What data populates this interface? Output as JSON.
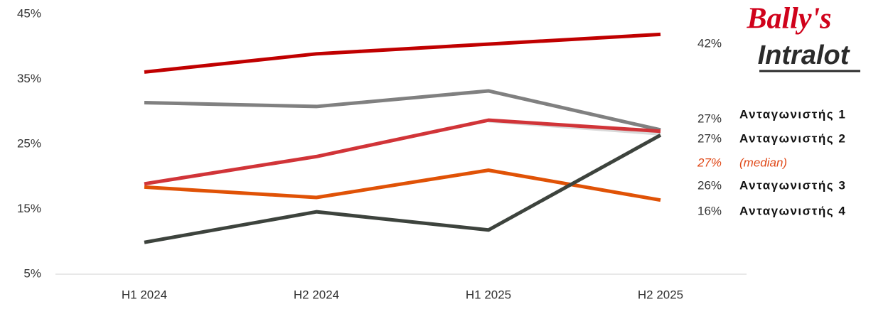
{
  "chart_data": {
    "type": "line",
    "categories": [
      "H1 2024",
      "H2 2024",
      "H1 2025",
      "H2 2025"
    ],
    "ylim": [
      5,
      45
    ],
    "yticks": [
      {
        "value": 5,
        "label": "5%"
      },
      {
        "value": 15,
        "label": "15%"
      },
      {
        "value": 25,
        "label": "25%"
      },
      {
        "value": 35,
        "label": "35%"
      },
      {
        "value": 45,
        "label": "45%"
      }
    ],
    "grid": false,
    "logo": [
      "Bally's",
      "Intralot"
    ],
    "series": [
      {
        "name": "(median)",
        "color": "#d9d9d9",
        "values": [
          null,
          null,
          28.6,
          26.6
        ],
        "value_labels": [
          null,
          null,
          null,
          "27%"
        ],
        "label_color": "#e04a1a",
        "italic": true
      },
      {
        "name": "Ανταγωνιστής 1",
        "color": "#808080",
        "values": [
          31.4,
          30.8,
          33.2,
          27.2
        ],
        "value_labels": [
          null,
          null,
          null,
          "27%"
        ]
      },
      {
        "name": "Ανταγωνιστής 4",
        "color": "#e05206",
        "values": [
          18.4,
          16.8,
          21.0,
          16.4
        ],
        "value_labels": [
          null,
          null,
          null,
          "16%"
        ]
      },
      {
        "name": "Ανταγωνιστής 3",
        "color": "#3d433d",
        "values": [
          9.9,
          14.6,
          11.8,
          26.4
        ],
        "value_labels": [
          null,
          null,
          null,
          "26%"
        ]
      },
      {
        "name": "Ανταγωνιστής 2",
        "color": "#d13438",
        "values": [
          18.9,
          23.1,
          28.7,
          27.0
        ],
        "value_labels": [
          null,
          null,
          null,
          "27%"
        ]
      },
      {
        "name": "Bally's Intralot",
        "color": "#c00000",
        "values": [
          36.1,
          38.9,
          40.4,
          41.9
        ],
        "value_labels": [
          null,
          null,
          null,
          "42%"
        ]
      }
    ]
  }
}
